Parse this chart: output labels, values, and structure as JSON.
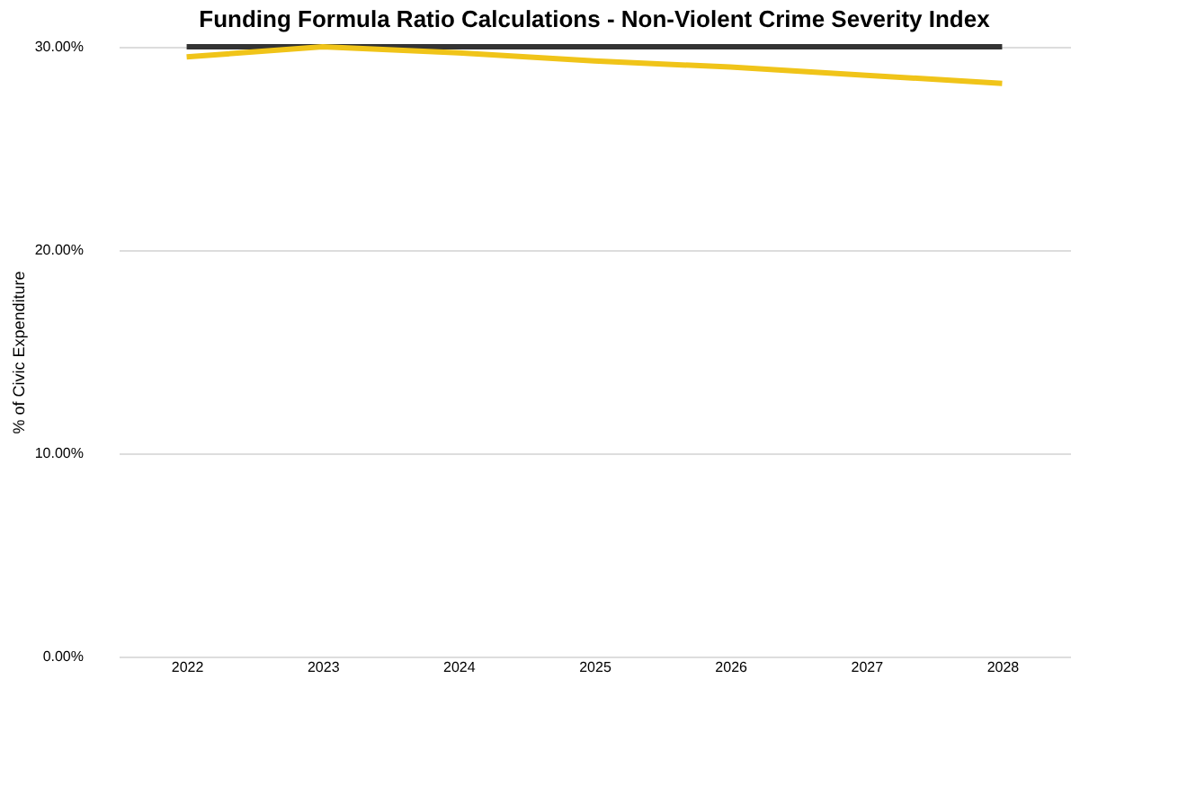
{
  "chart_data": {
    "type": "line",
    "title": "Funding Formula Ratio Calculations - Non-Violent Crime Severity Index",
    "ylabel": "% of Civic Expenditure",
    "categories": [
      "2022",
      "2023",
      "2024",
      "2025",
      "2026",
      "2027",
      "2028"
    ],
    "series": [
      {
        "color": "#333333",
        "values": [
          30,
          30,
          30,
          30,
          30,
          30,
          30
        ]
      },
      {
        "color": "#f0c419",
        "values": [
          29.5,
          30.0,
          29.7,
          29.3,
          29.0,
          28.6,
          28.2
        ]
      }
    ],
    "ylim": [
      0,
      30
    ],
    "yticks": [
      {
        "value": 0,
        "label": "0.00%"
      },
      {
        "value": 10,
        "label": "10.00%"
      },
      {
        "value": 20,
        "label": "20.00%"
      },
      {
        "value": 30,
        "label": "30.00%"
      }
    ],
    "grid": "y",
    "legend": false,
    "marker": "none",
    "line_style": "solid"
  }
}
